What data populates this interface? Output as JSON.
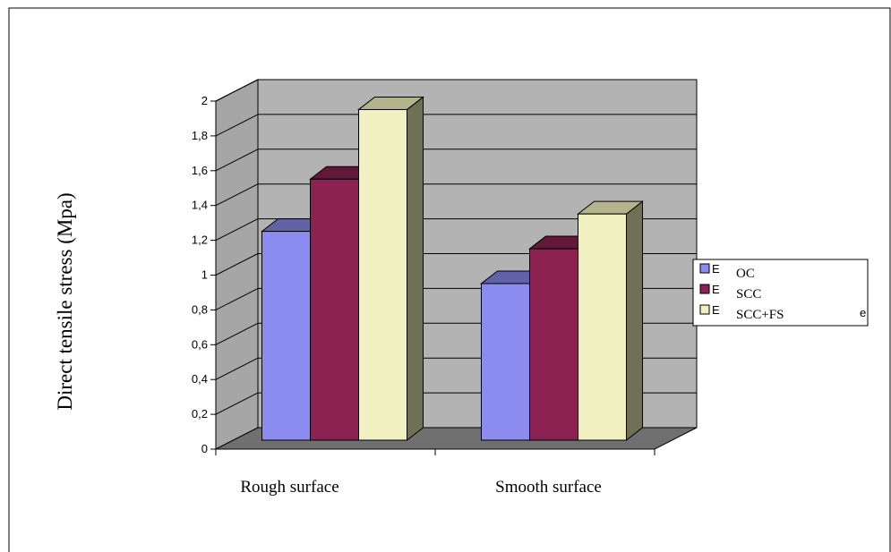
{
  "chart_data": {
    "type": "bar",
    "title": "",
    "xlabel": "",
    "ylabel": "Direct tensile stress (Mpa)",
    "ylim": [
      0,
      2
    ],
    "yticks": [
      "0",
      "0,2",
      "0,4",
      "0,6",
      "0,8",
      "1",
      "1,2",
      "1,4",
      "1,6",
      "1,8",
      "2"
    ],
    "categories": [
      "Rough surface",
      "Smooth surface"
    ],
    "series": [
      {
        "name": "OC",
        "color": "#8c8cf0",
        "values": [
          1.2,
          0.9
        ]
      },
      {
        "name": "SCC",
        "color": "#8b2252",
        "values": [
          1.5,
          1.1
        ]
      },
      {
        "name": "SCC+FS",
        "color": "#f0f0c0",
        "values": [
          1.9,
          1.3
        ]
      }
    ],
    "grid": true,
    "legend": "right",
    "legend_fragments": [
      "E",
      "E",
      "E",
      "e"
    ],
    "wall_color": "#b3b3b3",
    "floor_color": "#707070"
  }
}
